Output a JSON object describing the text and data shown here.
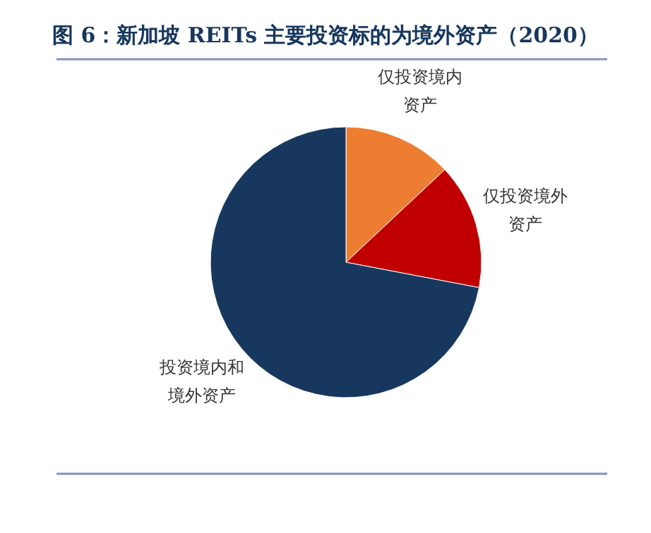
{
  "chart_data": {
    "type": "pie",
    "title": "图 6：新加坡 REITs 主要投资标的为境外资产（2020）",
    "categories": [
      "仅投资境内资产",
      "仅投资境外资产",
      "投资境内和境外资产"
    ],
    "values": [
      13,
      15,
      72
    ],
    "colors": [
      "#ed7d31",
      "#c00000",
      "#17375e"
    ]
  }
}
